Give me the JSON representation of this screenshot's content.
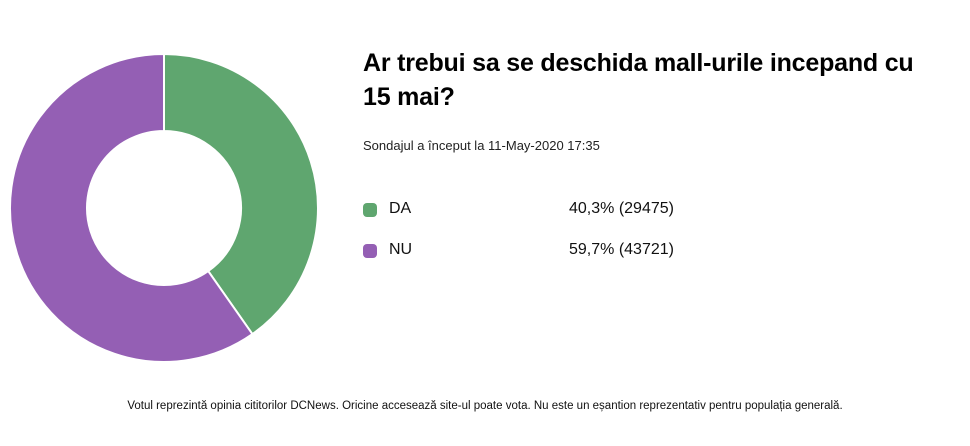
{
  "title": "Ar trebui sa se deschida mall-urile incepand cu 15 mai?",
  "started": "Sondajul a început la 11-May-2020 17:35",
  "footer": "Votul reprezintă opinia cititorilor DCNews. Oricine accesează site-ul poate vota. Nu este un eșantion reprezentativ pentru populația generală.",
  "chart_data": {
    "type": "pie",
    "title": "Ar trebui sa se deschida mall-urile incepand cu 15 mai?",
    "donut": true,
    "legend_position": "right",
    "categories": [
      "DA",
      "NU"
    ],
    "percentages": [
      40.3,
      59.7
    ],
    "values": [
      29475,
      43721
    ],
    "colors": [
      "#5fa66f",
      "#945fb4"
    ],
    "value_labels": [
      "40,3% (29475)",
      "59,7% (43721)"
    ]
  },
  "legend": [
    {
      "label": "DA",
      "value": "40,3% (29475)",
      "color": "#5fa66f"
    },
    {
      "label": "NU",
      "value": "59,7% (43721)",
      "color": "#945fb4"
    }
  ]
}
